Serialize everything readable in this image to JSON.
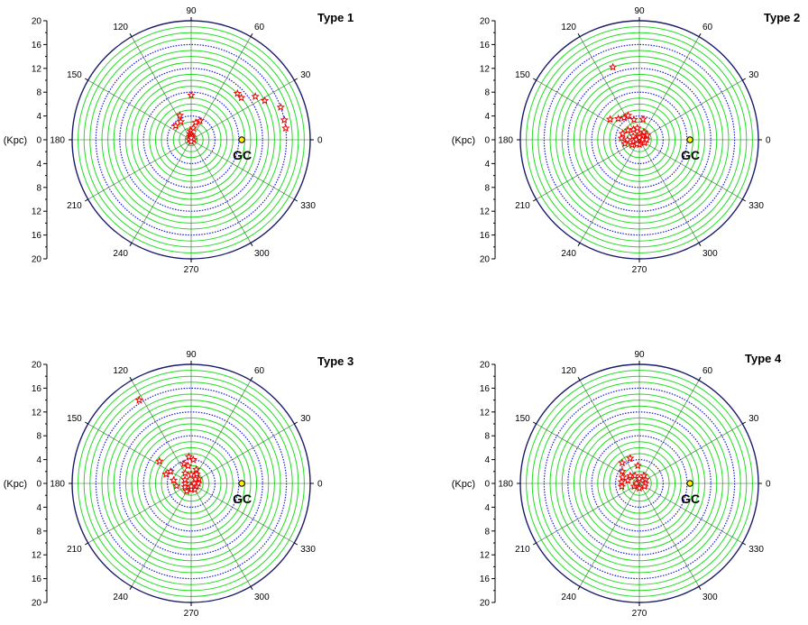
{
  "chart_data": [
    {
      "type": "scatter",
      "projection": "polar",
      "title": "Type 1",
      "radial_label": "(Kpc)",
      "radial_range": [
        0,
        20
      ],
      "radial_tick_labels": [
        "20",
        "16",
        "12",
        "8",
        "4",
        "0",
        "4",
        "8",
        "12",
        "16",
        "20"
      ],
      "angle_tick_labels": [
        "0",
        "30",
        "60",
        "90",
        "120",
        "150",
        "180",
        "210",
        "240",
        "270",
        "300",
        "330"
      ],
      "marker_label": "GC",
      "marker": {
        "angle_deg": 0,
        "r_kpc": 8.5
      },
      "grid": true,
      "points": [
        {
          "angle_deg": 90,
          "r_kpc": 7.5
        },
        {
          "angle_deg": 138,
          "r_kpc": 3.5
        },
        {
          "angle_deg": 115,
          "r_kpc": 4.5
        },
        {
          "angle_deg": 120,
          "r_kpc": 3.5
        },
        {
          "angle_deg": 65,
          "r_kpc": 3.5
        },
        {
          "angle_deg": 75,
          "r_kpc": 3.0
        },
        {
          "angle_deg": 80,
          "r_kpc": 2.0
        },
        {
          "angle_deg": 95,
          "r_kpc": 1.5
        },
        {
          "angle_deg": 100,
          "r_kpc": 1.0
        },
        {
          "angle_deg": 85,
          "r_kpc": 0.8
        },
        {
          "angle_deg": 110,
          "r_kpc": 0.6
        },
        {
          "angle_deg": 70,
          "r_kpc": 0.5
        },
        {
          "angle_deg": 180,
          "r_kpc": 0.3
        },
        {
          "angle_deg": 0,
          "r_kpc": 0.4
        },
        {
          "angle_deg": 270,
          "r_kpc": 0.3
        },
        {
          "angle_deg": 90,
          "r_kpc": 0.3
        },
        {
          "angle_deg": 45,
          "r_kpc": 11.0
        },
        {
          "angle_deg": 40,
          "r_kpc": 11.0
        },
        {
          "angle_deg": 34,
          "r_kpc": 13.0
        },
        {
          "angle_deg": 28,
          "r_kpc": 14.0
        },
        {
          "angle_deg": 20,
          "r_kpc": 16.0
        },
        {
          "angle_deg": 12,
          "r_kpc": 16.0
        },
        {
          "angle_deg": 7,
          "r_kpc": 16.0
        }
      ]
    },
    {
      "type": "scatter",
      "projection": "polar",
      "title": "Type 2",
      "radial_label": "(Kpc)",
      "radial_range": [
        0,
        20
      ],
      "radial_tick_labels": [
        "20",
        "16",
        "12",
        "8",
        "4",
        "0",
        "4",
        "8",
        "12",
        "16",
        "20"
      ],
      "angle_tick_labels": [
        "0",
        "30",
        "60",
        "90",
        "120",
        "150",
        "180",
        "210",
        "240",
        "270",
        "300",
        "330"
      ],
      "marker_label": "GC",
      "marker": {
        "angle_deg": 0,
        "r_kpc": 8.5
      },
      "grid": true,
      "points": [
        {
          "angle_deg": 110,
          "r_kpc": 13.0
        },
        {
          "angle_deg": 145,
          "r_kpc": 6.0
        },
        {
          "angle_deg": 135,
          "r_kpc": 5.0
        },
        {
          "angle_deg": 125,
          "r_kpc": 4.5
        },
        {
          "angle_deg": 115,
          "r_kpc": 4.5
        },
        {
          "angle_deg": 105,
          "r_kpc": 3.5
        },
        {
          "angle_deg": 80,
          "r_kpc": 3.5
        },
        {
          "angle_deg": 160,
          "r_kpc": 3.0
        },
        {
          "angle_deg": 175,
          "r_kpc": 3.0
        },
        {
          "angle_deg": 195,
          "r_kpc": 2.5
        },
        {
          "angle_deg": 215,
          "r_kpc": 1.5
        },
        {
          "angle_deg": 180,
          "r_kpc": 2.0
        },
        {
          "angle_deg": 140,
          "r_kpc": 2.5
        },
        {
          "angle_deg": 120,
          "r_kpc": 2.0
        },
        {
          "angle_deg": 100,
          "r_kpc": 2.0
        },
        {
          "angle_deg": 60,
          "r_kpc": 1.5
        },
        {
          "angle_deg": 30,
          "r_kpc": 1.5
        },
        {
          "angle_deg": 0,
          "r_kpc": 1.2
        },
        {
          "angle_deg": 330,
          "r_kpc": 1.0
        },
        {
          "angle_deg": 270,
          "r_kpc": 0.8
        },
        {
          "angle_deg": 90,
          "r_kpc": 1.0
        },
        {
          "angle_deg": 150,
          "r_kpc": 1.2
        },
        {
          "angle_deg": 200,
          "r_kpc": 1.0
        },
        {
          "angle_deg": 240,
          "r_kpc": 0.8
        },
        {
          "angle_deg": 45,
          "r_kpc": 0.8
        },
        {
          "angle_deg": 180,
          "r_kpc": 0.5
        },
        {
          "angle_deg": 0,
          "r_kpc": 0.5
        },
        {
          "angle_deg": 90,
          "r_kpc": 0.4
        }
      ]
    },
    {
      "type": "scatter",
      "projection": "polar",
      "title": "Type 3",
      "radial_label": "(Kpc)",
      "radial_range": [
        0,
        20
      ],
      "radial_tick_labels": [
        "20",
        "16",
        "12",
        "8",
        "4",
        "0",
        "4",
        "8",
        "12",
        "16",
        "20"
      ],
      "angle_tick_labels": [
        "0",
        "30",
        "60",
        "90",
        "120",
        "150",
        "180",
        "210",
        "240",
        "270",
        "300",
        "330"
      ],
      "marker_label": "GC",
      "marker": {
        "angle_deg": 0,
        "r_kpc": 8.5
      },
      "grid": true,
      "points": [
        {
          "angle_deg": 122,
          "r_kpc": 16.5
        },
        {
          "angle_deg": 145,
          "r_kpc": 6.5
        },
        {
          "angle_deg": 160,
          "r_kpc": 4.5
        },
        {
          "angle_deg": 150,
          "r_kpc": 4.0
        },
        {
          "angle_deg": 170,
          "r_kpc": 3.0
        },
        {
          "angle_deg": 190,
          "r_kpc": 2.5
        },
        {
          "angle_deg": 110,
          "r_kpc": 3.5
        },
        {
          "angle_deg": 95,
          "r_kpc": 4.5
        },
        {
          "angle_deg": 85,
          "r_kpc": 4.0
        },
        {
          "angle_deg": 100,
          "r_kpc": 3.0
        },
        {
          "angle_deg": 70,
          "r_kpc": 2.5
        },
        {
          "angle_deg": 120,
          "r_kpc": 2.0
        },
        {
          "angle_deg": 60,
          "r_kpc": 1.8
        },
        {
          "angle_deg": 30,
          "r_kpc": 1.5
        },
        {
          "angle_deg": 0,
          "r_kpc": 1.2
        },
        {
          "angle_deg": 330,
          "r_kpc": 1.0
        },
        {
          "angle_deg": 300,
          "r_kpc": 1.2
        },
        {
          "angle_deg": 270,
          "r_kpc": 1.0
        },
        {
          "angle_deg": 240,
          "r_kpc": 1.5
        },
        {
          "angle_deg": 210,
          "r_kpc": 1.2
        },
        {
          "angle_deg": 180,
          "r_kpc": 1.0
        },
        {
          "angle_deg": 150,
          "r_kpc": 1.2
        },
        {
          "angle_deg": 90,
          "r_kpc": 1.5
        },
        {
          "angle_deg": 45,
          "r_kpc": 1.0
        },
        {
          "angle_deg": 0,
          "r_kpc": 0.5
        },
        {
          "angle_deg": 270,
          "r_kpc": 0.5
        }
      ]
    },
    {
      "type": "scatter",
      "projection": "polar",
      "title": "Type 4",
      "radial_label": "(Kpc)",
      "radial_range": [
        0,
        20
      ],
      "radial_tick_labels": [
        "20",
        "16",
        "12",
        "8",
        "4",
        "0",
        "4",
        "8",
        "12",
        "16",
        "20"
      ],
      "angle_tick_labels": [
        "0",
        "30",
        "60",
        "90",
        "120",
        "150",
        "180",
        "210",
        "240",
        "270",
        "300",
        "330"
      ],
      "marker_label": "GC",
      "marker": {
        "angle_deg": 0,
        "r_kpc": 8.5
      },
      "grid": true,
      "points": [
        {
          "angle_deg": 130,
          "r_kpc": 4.5
        },
        {
          "angle_deg": 110,
          "r_kpc": 4.5
        },
        {
          "angle_deg": 145,
          "r_kpc": 3.5
        },
        {
          "angle_deg": 160,
          "r_kpc": 3.0
        },
        {
          "angle_deg": 175,
          "r_kpc": 3.0
        },
        {
          "angle_deg": 190,
          "r_kpc": 3.0
        },
        {
          "angle_deg": 165,
          "r_kpc": 2.0
        },
        {
          "angle_deg": 140,
          "r_kpc": 2.0
        },
        {
          "angle_deg": 95,
          "r_kpc": 3.0
        },
        {
          "angle_deg": 120,
          "r_kpc": 1.5
        },
        {
          "angle_deg": 60,
          "r_kpc": 1.5
        },
        {
          "angle_deg": 30,
          "r_kpc": 1.2
        },
        {
          "angle_deg": 0,
          "r_kpc": 1.0
        },
        {
          "angle_deg": 330,
          "r_kpc": 1.0
        },
        {
          "angle_deg": 270,
          "r_kpc": 0.8
        },
        {
          "angle_deg": 210,
          "r_kpc": 1.0
        },
        {
          "angle_deg": 90,
          "r_kpc": 0.8
        },
        {
          "angle_deg": 180,
          "r_kpc": 0.5
        }
      ]
    }
  ]
}
